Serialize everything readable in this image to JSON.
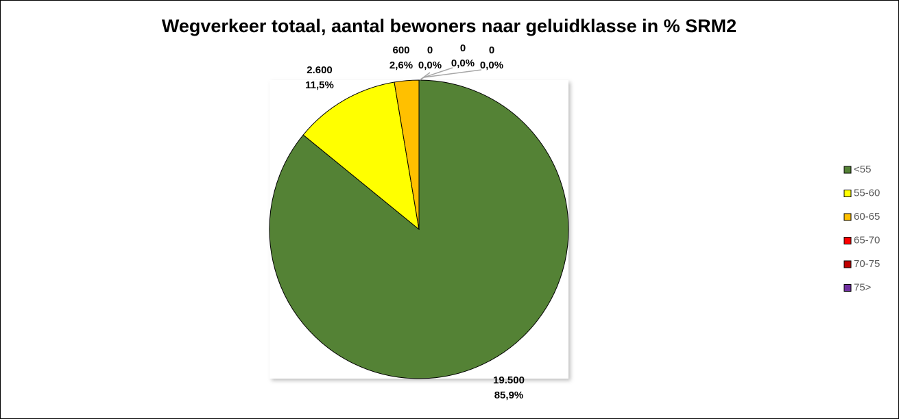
{
  "chart_data": {
    "type": "pie",
    "title": "Wegverkeer totaal, aantal bewoners naar geluidklasse in % SRM2",
    "categories": [
      "<55",
      "55-60",
      "60-65",
      "65-70",
      "70-75",
      "75>"
    ],
    "values": [
      19500,
      2600,
      600,
      0,
      0,
      0
    ],
    "value_labels": [
      "19.500",
      "2.600",
      "600",
      "0",
      "0",
      "0"
    ],
    "percent_labels": [
      "85,9%",
      "11,5%",
      "2,6%",
      "0,0%",
      "0,0%",
      "0,0%"
    ],
    "colors": [
      "#548235",
      "#ffff00",
      "#ffc000",
      "#ff0000",
      "#c00000",
      "#7030a0"
    ],
    "legend": "right"
  }
}
